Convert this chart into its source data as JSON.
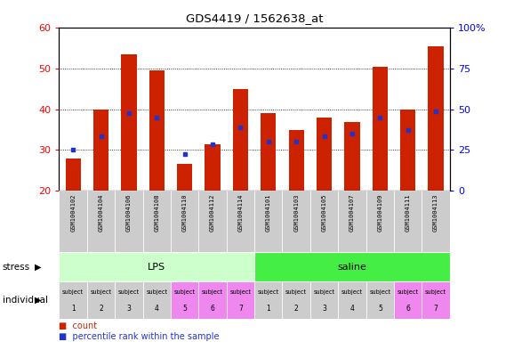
{
  "title": "GDS4419 / 1562638_at",
  "samples": [
    "GSM1004102",
    "GSM1004104",
    "GSM1004106",
    "GSM1004108",
    "GSM1004110",
    "GSM1004112",
    "GSM1004114",
    "GSM1004101",
    "GSM1004103",
    "GSM1004105",
    "GSM1004107",
    "GSM1004109",
    "GSM1004111",
    "GSM1004113"
  ],
  "counts": [
    28,
    40,
    53.5,
    49.5,
    26.5,
    31.5,
    45,
    39,
    35,
    38,
    37,
    50.5,
    40,
    55.5
  ],
  "percentiles": [
    30,
    33.5,
    39,
    38,
    29,
    31.5,
    35.5,
    32,
    32,
    33.5,
    34,
    38,
    35,
    39.5
  ],
  "ylim_left": [
    20,
    60
  ],
  "ylim_right": [
    0,
    100
  ],
  "yticks_left": [
    20,
    30,
    40,
    50,
    60
  ],
  "yticks_right": [
    0,
    25,
    50,
    75,
    100
  ],
  "bar_color": "#cc2200",
  "dot_color": "#2233cc",
  "stress_groups": [
    {
      "label": "LPS",
      "start": 0,
      "end": 7,
      "color": "#ccffcc"
    },
    {
      "label": "saline",
      "start": 7,
      "end": 14,
      "color": "#44ee44"
    }
  ],
  "individual_colors": [
    "#cccccc",
    "#cccccc",
    "#cccccc",
    "#cccccc",
    "#ee88ee",
    "#ee88ee",
    "#ee88ee",
    "#cccccc",
    "#cccccc",
    "#cccccc",
    "#cccccc",
    "#cccccc",
    "#ee88ee",
    "#ee88ee"
  ],
  "individual_numbers": [
    "1",
    "2",
    "3",
    "4",
    "5",
    "6",
    "7",
    "1",
    "2",
    "3",
    "4",
    "5",
    "6",
    "7"
  ],
  "sample_bg_color": "#cccccc"
}
